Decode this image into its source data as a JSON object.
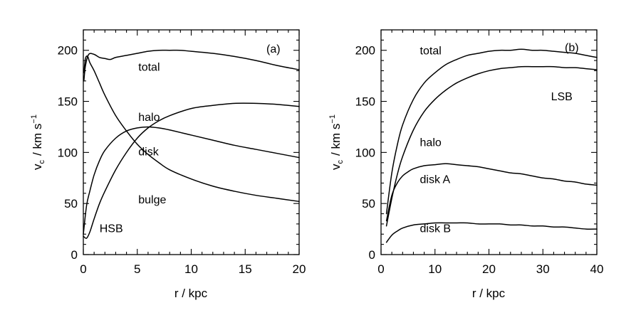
{
  "chart_data": [
    {
      "type": "line",
      "panel_label": "(a)",
      "xlabel": "r / kpc",
      "ylabel_main": "v",
      "ylabel_sub": "c",
      "ylabel_rest": "/ km s",
      "ylabel_sup": "−1",
      "xlim": [
        0,
        20
      ],
      "ylim": [
        0,
        220
      ],
      "xticks": [
        0,
        5,
        10,
        15,
        20
      ],
      "yticks": [
        0,
        50,
        100,
        150,
        200
      ],
      "xtick_labels": [
        "0",
        "5",
        "10",
        "15",
        "20"
      ],
      "ytick_labels": [
        "0",
        "50",
        "100",
        "150",
        "200"
      ],
      "annotations": [
        {
          "text": "HSB",
          "x": 1.5,
          "y": 22
        },
        {
          "text": "total",
          "x": 5.1,
          "y": 180
        },
        {
          "text": "halo",
          "x": 5.1,
          "y": 131
        },
        {
          "text": "disk",
          "x": 5.1,
          "y": 97
        },
        {
          "text": "bulge",
          "x": 5.1,
          "y": 50
        }
      ],
      "series": [
        {
          "label": "total",
          "x": [
            0.05,
            0.2,
            0.5,
            1,
            1.5,
            2,
            2.5,
            3,
            4,
            5,
            6,
            7,
            8,
            9,
            10,
            12,
            14,
            16,
            18,
            20
          ],
          "y": [
            170,
            185,
            196,
            196,
            193,
            192,
            191,
            193,
            195,
            197,
            199,
            200,
            200,
            200,
            199,
            197,
            194,
            190,
            185,
            181
          ]
        },
        {
          "label": "bulge",
          "x": [
            0.05,
            0.2,
            0.4,
            0.6,
            1,
            1.5,
            2,
            3,
            4,
            5,
            6,
            7,
            8,
            10,
            12,
            14,
            16,
            18,
            20
          ],
          "y": [
            178,
            192,
            194,
            188,
            180,
            168,
            156,
            136,
            121,
            108,
            98,
            90,
            83,
            74,
            67,
            62,
            58,
            55,
            52
          ]
        },
        {
          "label": "disk",
          "x": [
            0,
            0.3,
            0.6,
            1,
            1.5,
            2,
            3,
            4,
            5,
            6,
            7,
            8,
            10,
            12,
            14,
            16,
            18,
            20
          ],
          "y": [
            20,
            48,
            62,
            78,
            92,
            102,
            114,
            121,
            124,
            125,
            124,
            122,
            117,
            112,
            107,
            103,
            99,
            95
          ]
        },
        {
          "label": "halo",
          "x": [
            0,
            0.3,
            0.6,
            1,
            1.5,
            2,
            3,
            4,
            5,
            6,
            7,
            8,
            10,
            12,
            14,
            16,
            18,
            20
          ],
          "y": [
            18,
            16,
            22,
            35,
            50,
            62,
            83,
            100,
            114,
            124,
            131,
            136,
            143,
            146,
            148,
            148,
            147,
            145
          ]
        }
      ]
    },
    {
      "type": "line",
      "panel_label": "(b)",
      "xlabel": "r / kpc",
      "ylabel_main": "v",
      "ylabel_sub": "c",
      "ylabel_rest": "/ km s",
      "ylabel_sup": "−1",
      "xlim": [
        0,
        40
      ],
      "ylim": [
        0,
        220
      ],
      "xticks": [
        0,
        10,
        20,
        30,
        40
      ],
      "yticks": [
        0,
        50,
        100,
        150,
        200
      ],
      "xtick_labels": [
        "0",
        "10",
        "20",
        "30",
        "40"
      ],
      "ytick_labels": [
        "0",
        "50",
        "100",
        "150",
        "200"
      ],
      "annotations": [
        {
          "text": "LSB",
          "x": 31.5,
          "y": 151
        },
        {
          "text": "total",
          "x": 7.2,
          "y": 196
        },
        {
          "text": "halo",
          "x": 7.2,
          "y": 106
        },
        {
          "text": "disk A",
          "x": 7.2,
          "y": 70
        },
        {
          "text": "disk B",
          "x": 7.2,
          "y": 22
        }
      ],
      "series": [
        {
          "label": "total",
          "x": [
            1,
            2,
            3,
            4,
            6,
            8,
            10,
            12,
            14,
            16,
            18,
            20,
            22,
            24,
            26,
            28,
            30,
            32,
            34,
            36,
            38,
            40
          ],
          "y": [
            40,
            80,
            107,
            127,
            152,
            168,
            178,
            186,
            191,
            195,
            197,
            199,
            200,
            200,
            201,
            200,
            200,
            199,
            198,
            197,
            195,
            193
          ]
        },
        {
          "label": "halo",
          "x": [
            1,
            2,
            3,
            4,
            6,
            8,
            10,
            12,
            14,
            16,
            18,
            20,
            22,
            24,
            26,
            28,
            30,
            32,
            34,
            36,
            38,
            40
          ],
          "y": [
            28,
            55,
            78,
            96,
            122,
            140,
            152,
            161,
            168,
            173,
            177,
            180,
            182,
            183,
            184,
            184,
            184,
            184,
            183,
            183,
            182,
            181
          ]
        },
        {
          "label": "disk A",
          "x": [
            1,
            2,
            3,
            4,
            5,
            6,
            8,
            10,
            12,
            14,
            16,
            18,
            20,
            22,
            24,
            26,
            28,
            30,
            32,
            34,
            36,
            38,
            40
          ],
          "y": [
            33,
            58,
            70,
            77,
            81,
            84,
            87,
            88,
            89,
            88,
            87,
            86,
            84,
            82,
            80,
            79,
            77,
            75,
            74,
            72,
            71,
            69,
            68
          ]
        },
        {
          "label": "disk B",
          "x": [
            1,
            2,
            3,
            4,
            6,
            8,
            10,
            12,
            14,
            16,
            18,
            20,
            22,
            24,
            26,
            28,
            30,
            32,
            34,
            36,
            38,
            40
          ],
          "y": [
            12,
            19,
            23,
            26,
            29,
            30,
            31,
            31,
            31,
            31,
            30,
            30,
            30,
            29,
            29,
            28,
            28,
            27,
            27,
            26,
            25,
            25
          ]
        }
      ]
    }
  ]
}
